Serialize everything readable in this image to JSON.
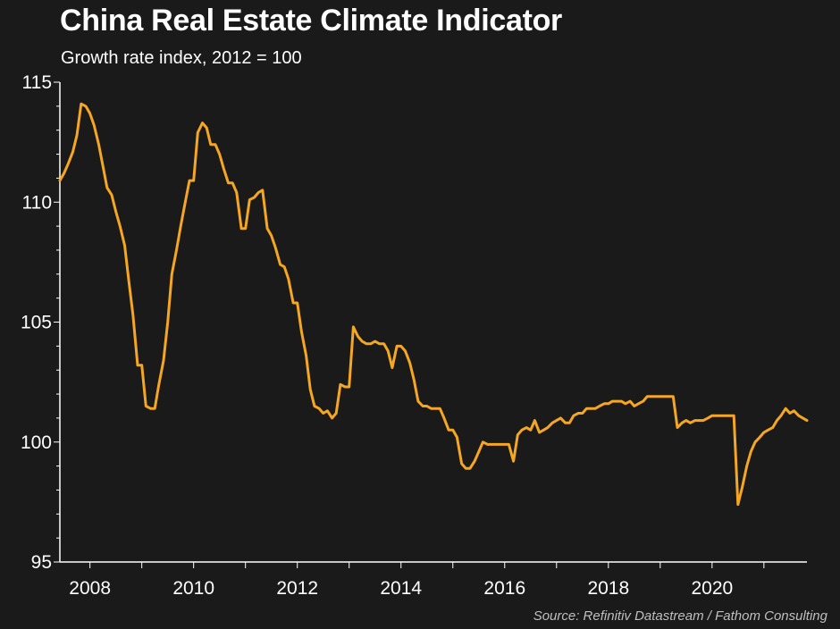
{
  "title": "China Real Estate Climate Indicator",
  "subtitle": "Growth rate index, 2012 = 100",
  "source": "Source: Refinitiv Datastream / Fathom Consulting",
  "chart_data": {
    "type": "line",
    "title": "China Real Estate Climate Indicator",
    "subtitle": "Growth rate index, 2012 = 100",
    "xlabel": "",
    "ylabel": "",
    "xlim": [
      2007.42,
      2021.83
    ],
    "ylim": [
      95,
      115
    ],
    "x_ticks": [
      2008,
      2010,
      2012,
      2014,
      2016,
      2018,
      2020
    ],
    "y_ticks": [
      95,
      100,
      105,
      110,
      115
    ],
    "grid": false,
    "line_color": "#f5a623",
    "series": [
      {
        "points": [
          [
            2007.42,
            110.9
          ],
          [
            2007.5,
            111.2
          ],
          [
            2007.58,
            111.6
          ],
          [
            2007.67,
            112.1
          ],
          [
            2007.75,
            112.8
          ],
          [
            2007.83,
            114.1
          ],
          [
            2007.92,
            114.0
          ],
          [
            2008.0,
            113.7
          ],
          [
            2008.08,
            113.2
          ],
          [
            2008.17,
            112.4
          ],
          [
            2008.25,
            111.5
          ],
          [
            2008.33,
            110.6
          ],
          [
            2008.42,
            110.3
          ],
          [
            2008.5,
            109.6
          ],
          [
            2008.58,
            109.0
          ],
          [
            2008.67,
            108.2
          ],
          [
            2008.75,
            106.7
          ],
          [
            2008.83,
            105.3
          ],
          [
            2008.92,
            103.2
          ],
          [
            2009.0,
            103.2
          ],
          [
            2009.08,
            101.5
          ],
          [
            2009.17,
            101.4
          ],
          [
            2009.25,
            101.4
          ],
          [
            2009.33,
            102.4
          ],
          [
            2009.42,
            103.4
          ],
          [
            2009.5,
            105.0
          ],
          [
            2009.58,
            107.0
          ],
          [
            2009.67,
            108.0
          ],
          [
            2009.75,
            109.0
          ],
          [
            2009.83,
            109.9
          ],
          [
            2009.92,
            110.9
          ],
          [
            2010.0,
            110.9
          ],
          [
            2010.08,
            112.9
          ],
          [
            2010.17,
            113.3
          ],
          [
            2010.25,
            113.1
          ],
          [
            2010.33,
            112.4
          ],
          [
            2010.42,
            112.4
          ],
          [
            2010.5,
            112.0
          ],
          [
            2010.58,
            111.4
          ],
          [
            2010.67,
            110.8
          ],
          [
            2010.75,
            110.8
          ],
          [
            2010.83,
            110.4
          ],
          [
            2010.92,
            108.9
          ],
          [
            2011.0,
            108.9
          ],
          [
            2011.08,
            110.1
          ],
          [
            2011.17,
            110.2
          ],
          [
            2011.25,
            110.4
          ],
          [
            2011.33,
            110.5
          ],
          [
            2011.42,
            108.9
          ],
          [
            2011.5,
            108.6
          ],
          [
            2011.58,
            108.1
          ],
          [
            2011.67,
            107.4
          ],
          [
            2011.75,
            107.3
          ],
          [
            2011.83,
            106.8
          ],
          [
            2011.92,
            105.8
          ],
          [
            2012.0,
            105.8
          ],
          [
            2012.08,
            104.6
          ],
          [
            2012.17,
            103.6
          ],
          [
            2012.25,
            102.2
          ],
          [
            2012.33,
            101.5
          ],
          [
            2012.42,
            101.4
          ],
          [
            2012.5,
            101.2
          ],
          [
            2012.58,
            101.3
          ],
          [
            2012.67,
            101.0
          ],
          [
            2012.75,
            101.2
          ],
          [
            2012.83,
            102.4
          ],
          [
            2012.92,
            102.3
          ],
          [
            2013.0,
            102.3
          ],
          [
            2013.08,
            104.8
          ],
          [
            2013.17,
            104.4
          ],
          [
            2013.25,
            104.2
          ],
          [
            2013.33,
            104.1
          ],
          [
            2013.42,
            104.1
          ],
          [
            2013.5,
            104.2
          ],
          [
            2013.58,
            104.1
          ],
          [
            2013.67,
            104.1
          ],
          [
            2013.75,
            103.8
          ],
          [
            2013.83,
            103.1
          ],
          [
            2013.92,
            104.0
          ],
          [
            2014.0,
            104.0
          ],
          [
            2014.08,
            103.8
          ],
          [
            2014.17,
            103.3
          ],
          [
            2014.25,
            102.6
          ],
          [
            2014.33,
            101.7
          ],
          [
            2014.42,
            101.5
          ],
          [
            2014.5,
            101.5
          ],
          [
            2014.58,
            101.4
          ],
          [
            2014.67,
            101.4
          ],
          [
            2014.75,
            101.4
          ],
          [
            2014.83,
            101.0
          ],
          [
            2014.92,
            100.5
          ],
          [
            2015.0,
            100.5
          ],
          [
            2015.08,
            100.2
          ],
          [
            2015.17,
            99.1
          ],
          [
            2015.25,
            98.9
          ],
          [
            2015.33,
            98.9
          ],
          [
            2015.42,
            99.2
          ],
          [
            2015.5,
            99.6
          ],
          [
            2015.58,
            100.0
          ],
          [
            2015.67,
            99.9
          ],
          [
            2015.75,
            99.9
          ],
          [
            2015.83,
            99.9
          ],
          [
            2015.92,
            99.9
          ],
          [
            2016.0,
            99.9
          ],
          [
            2016.08,
            99.9
          ],
          [
            2016.17,
            99.2
          ],
          [
            2016.25,
            100.3
          ],
          [
            2016.33,
            100.5
          ],
          [
            2016.42,
            100.6
          ],
          [
            2016.5,
            100.5
          ],
          [
            2016.58,
            100.9
          ],
          [
            2016.67,
            100.4
          ],
          [
            2016.75,
            100.5
          ],
          [
            2016.83,
            100.6
          ],
          [
            2016.92,
            100.8
          ],
          [
            2017.0,
            100.9
          ],
          [
            2017.08,
            101.0
          ],
          [
            2017.17,
            100.8
          ],
          [
            2017.25,
            100.8
          ],
          [
            2017.33,
            101.1
          ],
          [
            2017.42,
            101.2
          ],
          [
            2017.5,
            101.2
          ],
          [
            2017.58,
            101.4
          ],
          [
            2017.67,
            101.4
          ],
          [
            2017.75,
            101.4
          ],
          [
            2017.83,
            101.5
          ],
          [
            2017.92,
            101.6
          ],
          [
            2018.0,
            101.6
          ],
          [
            2018.08,
            101.7
          ],
          [
            2018.17,
            101.7
          ],
          [
            2018.25,
            101.7
          ],
          [
            2018.33,
            101.6
          ],
          [
            2018.42,
            101.7
          ],
          [
            2018.5,
            101.5
          ],
          [
            2018.58,
            101.6
          ],
          [
            2018.67,
            101.7
          ],
          [
            2018.75,
            101.9
          ],
          [
            2018.83,
            101.9
          ],
          [
            2018.92,
            101.9
          ],
          [
            2019.0,
            101.9
          ],
          [
            2019.08,
            101.9
          ],
          [
            2019.17,
            101.9
          ],
          [
            2019.25,
            101.9
          ],
          [
            2019.33,
            100.6
          ],
          [
            2019.42,
            100.8
          ],
          [
            2019.5,
            100.9
          ],
          [
            2019.58,
            100.8
          ],
          [
            2019.67,
            100.9
          ],
          [
            2019.75,
            100.9
          ],
          [
            2019.83,
            100.9
          ],
          [
            2019.92,
            101.0
          ],
          [
            2020.0,
            101.1
          ],
          [
            2020.08,
            101.1
          ],
          [
            2020.17,
            101.1
          ],
          [
            2020.25,
            101.1
          ],
          [
            2020.33,
            101.1
          ],
          [
            2020.42,
            101.1
          ],
          [
            2020.5,
            97.4
          ],
          [
            2020.58,
            98.1
          ],
          [
            2020.67,
            99.0
          ],
          [
            2020.75,
            99.6
          ],
          [
            2020.83,
            100.0
          ],
          [
            2020.92,
            100.2
          ],
          [
            2021.0,
            100.4
          ],
          [
            2021.08,
            100.5
          ],
          [
            2021.17,
            100.6
          ],
          [
            2021.25,
            100.9
          ],
          [
            2021.33,
            101.1
          ],
          [
            2021.42,
            101.4
          ],
          [
            2021.5,
            101.2
          ],
          [
            2021.58,
            101.3
          ],
          [
            2021.67,
            101.1
          ],
          [
            2021.75,
            101.0
          ],
          [
            2021.83,
            100.9
          ]
        ]
      }
    ]
  }
}
